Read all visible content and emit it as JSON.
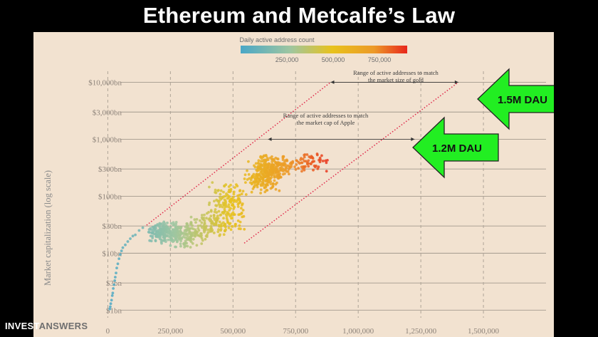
{
  "title": "Ethereum and Metcalfe’s Law",
  "brand": {
    "part1": "INVEST",
    "part2": "ANSWERS"
  },
  "chart_data": {
    "type": "scatter",
    "xlabel": "",
    "ylabel": "Market capitalization (log scale)",
    "y_scale": "log",
    "xlim": [
      -75000,
      1750000
    ],
    "ylim": [
      0.85,
      17000
    ],
    "x_ticks": [
      0,
      250000,
      500000,
      750000,
      1000000,
      1250000,
      1500000
    ],
    "x_tick_labels": [
      "0",
      "250,000",
      "500,000",
      "750,000",
      "1,000,000",
      "1,250,000",
      "1,500,000"
    ],
    "y_ticks": [
      1,
      3,
      10,
      30,
      100,
      300,
      1000,
      3000,
      10000
    ],
    "y_tick_labels": [
      "$1bn",
      "$3bn",
      "$10bn",
      "$30bn",
      "$100bn",
      "$300bn",
      "$1,000bn",
      "$3,000bn",
      "$10,000bn"
    ],
    "grid": "vertical dashed at x ticks, horizontal solid at y ticks",
    "colorbar": {
      "title": "Daily active address count",
      "ticks": [
        250000,
        500000,
        750000
      ],
      "tick_labels": [
        "250,000",
        "500,000",
        "750,000"
      ],
      "range": [
        0,
        900000
      ],
      "colors": [
        "#4aa7c7",
        "#9fc6a0",
        "#e8c21c",
        "#ec9a28",
        "#e8261c"
      ]
    },
    "clusters": [
      {
        "x": [
          150000,
          300000
        ],
        "y": [
          15,
          35
        ],
        "n": 170
      },
      {
        "x": [
          200000,
          420000
        ],
        "y": [
          12,
          40
        ],
        "n": 180
      },
      {
        "x": [
          320000,
          560000
        ],
        "y": [
          20,
          60
        ],
        "n": 130
      },
      {
        "x": [
          400000,
          560000
        ],
        "y": [
          40,
          180
        ],
        "n": 120
      },
      {
        "x": [
          540000,
          700000
        ],
        "y": [
          100,
          450
        ],
        "n": 190
      },
      {
        "x": [
          580000,
          740000
        ],
        "y": [
          200,
          550
        ],
        "n": 150
      },
      {
        "x": [
          680000,
          900000
        ],
        "y": [
          250,
          600
        ],
        "n": 80
      }
    ],
    "early_points": [
      [
        8000,
        1.05
      ],
      [
        10000,
        1.15
      ],
      [
        12000,
        1.3
      ],
      [
        15000,
        1.5
      ],
      [
        18000,
        1.8
      ],
      [
        20000,
        2.0
      ],
      [
        22000,
        2.4
      ],
      [
        25000,
        2.8
      ],
      [
        28000,
        3.3
      ],
      [
        30000,
        3.8
      ],
      [
        33000,
        4.5
      ],
      [
        36000,
        5.5
      ],
      [
        40000,
        6.5
      ],
      [
        45000,
        8
      ],
      [
        50000,
        9.5
      ],
      [
        55000,
        11
      ],
      [
        60000,
        12.5
      ],
      [
        70000,
        14
      ],
      [
        80000,
        16
      ],
      [
        90000,
        18
      ],
      [
        100000,
        20
      ],
      [
        110000,
        21
      ],
      [
        125000,
        25
      ],
      [
        140000,
        28
      ]
    ],
    "guide_lines": [
      {
        "from": [
          155000,
          31
        ],
        "to": [
          890000,
          10000
        ],
        "style": "dotted red"
      },
      {
        "from": [
          545000,
          15
        ],
        "to": [
          1400000,
          10000
        ],
        "style": "dotted red"
      }
    ],
    "annotations": [
      {
        "text": [
          "Range of active addresses to match",
          "the market size of gold"
        ],
        "x": 1150000,
        "y": 13500,
        "arrow_x": [
          890000,
          1400000
        ],
        "arrow_y": 10000
      },
      {
        "text": [
          "Range of active addresses to match",
          "the market cap of Apple"
        ],
        "x": 870000,
        "y": 2400,
        "arrow_x": [
          640000,
          1225000
        ],
        "arrow_y": 1000
      }
    ],
    "callouts": [
      {
        "text": "1.5M DAU"
      },
      {
        "text": "1.2M DAU"
      }
    ]
  }
}
